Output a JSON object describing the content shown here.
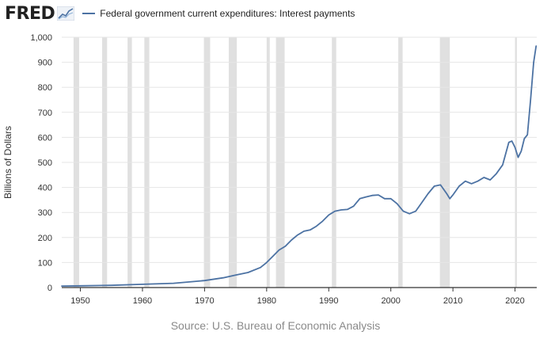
{
  "header": {
    "logo_text": "FRED",
    "logo_icon": "fred-chart-icon"
  },
  "colors": {
    "line": "#4c72a3",
    "recession": "#e0e0e0",
    "grid": "#e6e6e6",
    "plot_bg": "#ffffff"
  },
  "source_text": "Source: U.S. Bureau of Economic Analysis",
  "chart_data": {
    "type": "line",
    "ylabel": "Billions of Dollars",
    "xlabel": "",
    "xlim": [
      1947,
      2023.5
    ],
    "ylim": [
      0,
      1000
    ],
    "x_ticks": [
      1950,
      1960,
      1970,
      1980,
      1990,
      2000,
      2010,
      2020
    ],
    "x_tick_labels": [
      "1950",
      "1960",
      "1970",
      "1980",
      "1990",
      "2000",
      "2010",
      "2020"
    ],
    "y_ticks": [
      0,
      100,
      200,
      300,
      400,
      500,
      600,
      700,
      800,
      900,
      1000
    ],
    "y_tick_labels": [
      "0",
      "100",
      "200",
      "300",
      "400",
      "500",
      "600",
      "700",
      "800",
      "900",
      "1,000"
    ],
    "grid": true,
    "legend_position": "top-left",
    "recessions": [
      [
        1948.9,
        1949.8
      ],
      [
        1953.5,
        1954.3
      ],
      [
        1957.6,
        1958.3
      ],
      [
        1960.3,
        1961.1
      ],
      [
        1969.9,
        1970.9
      ],
      [
        1973.9,
        1975.2
      ],
      [
        1980.0,
        1980.5
      ],
      [
        1981.5,
        1982.9
      ],
      [
        1990.5,
        1991.2
      ],
      [
        2001.2,
        2001.9
      ],
      [
        2007.9,
        2009.5
      ],
      [
        2020.0,
        2020.3
      ]
    ],
    "series": [
      {
        "name": "Federal government current expenditures: Interest payments",
        "x": [
          1947,
          1950,
          1955,
          1960,
          1965,
          1970,
          1973,
          1975,
          1977,
          1979,
          1980,
          1981,
          1982,
          1983,
          1984,
          1985,
          1986,
          1987,
          1988,
          1989,
          1990,
          1991,
          1992,
          1993,
          1994,
          1995,
          1996,
          1997,
          1998,
          1999,
          2000,
          2001,
          2002,
          2003,
          2004,
          2005,
          2006,
          2007,
          2008,
          2009,
          2009.5,
          2010,
          2011,
          2012,
          2013,
          2014,
          2015,
          2016,
          2017,
          2018,
          2019,
          2019.5,
          2020,
          2020.5,
          2021,
          2021.5,
          2022,
          2022.5,
          2023,
          2023.4
        ],
        "y": [
          6,
          7,
          9,
          13,
          17,
          28,
          39,
          50,
          60,
          80,
          100,
          125,
          150,
          165,
          190,
          210,
          225,
          230,
          245,
          265,
          290,
          305,
          310,
          312,
          325,
          355,
          362,
          368,
          370,
          355,
          355,
          335,
          305,
          295,
          305,
          340,
          375,
          405,
          410,
          375,
          355,
          370,
          405,
          425,
          415,
          425,
          440,
          430,
          455,
          490,
          580,
          585,
          560,
          520,
          545,
          595,
          610,
          750,
          900,
          965
        ]
      }
    ]
  }
}
